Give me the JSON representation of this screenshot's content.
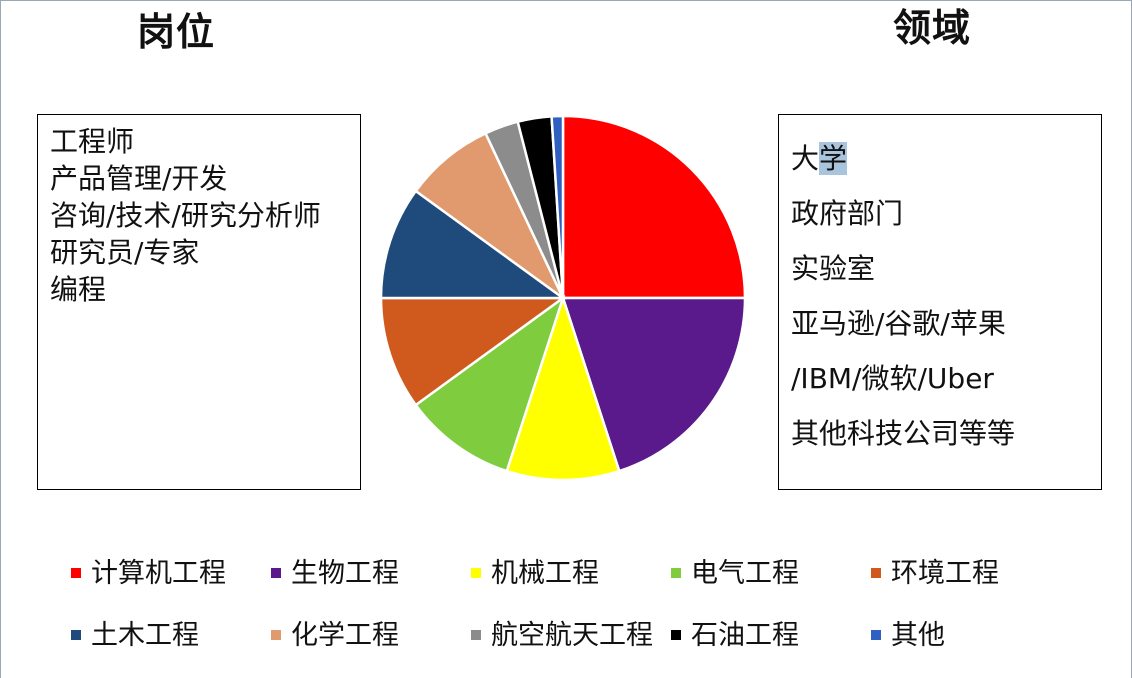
{
  "headings": {
    "left": "岗位",
    "right": "领域"
  },
  "left_box": {
    "lines": [
      "工程师",
      "产品管理/开发",
      "咨询/技术/研究分析师",
      "研究员/专家",
      "编程"
    ]
  },
  "right_box": {
    "first_line_prefix": "大",
    "first_line_highlight": "学",
    "lines": [
      "政府部门",
      "实验室",
      "亚马逊/谷歌/苹果",
      "/IBM/微软/Uber",
      "其他科技公司等等"
    ]
  },
  "chart_data": {
    "type": "pie",
    "title": "",
    "categories": [
      "计算机工程",
      "生物工程",
      "机械工程",
      "电气工程",
      "环境工程",
      "土木工程",
      "化学工程",
      "航空航天工程",
      "石油工程",
      "其他"
    ],
    "values": [
      25,
      20,
      10,
      10,
      10,
      10,
      8,
      3,
      3,
      1
    ],
    "colors": [
      "#ff0000",
      "#5b1a8c",
      "#ffff00",
      "#7fcc3f",
      "#d05a1e",
      "#1f4a7c",
      "#e09a6e",
      "#8c8c8c",
      "#000000",
      "#2f5fc0"
    ],
    "legend_position": "bottom",
    "start_angle": "12 o'clock, clockwise"
  }
}
